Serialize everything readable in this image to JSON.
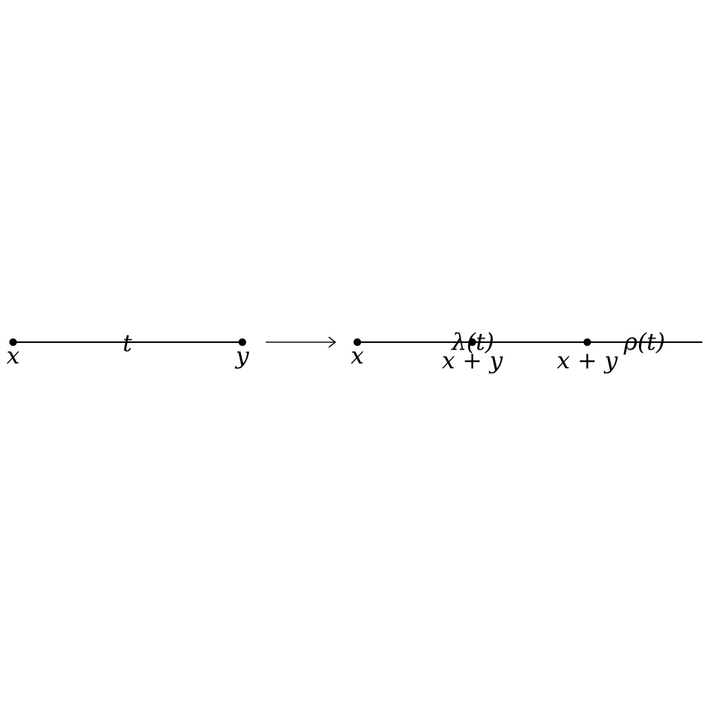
{
  "left_graph": {
    "vertices": [
      "x",
      "y"
    ],
    "edge_label": "t"
  },
  "right_graph": {
    "vertices": [
      "x",
      "x + y",
      "x + y"
    ],
    "edge_labels": [
      "λ(t)",
      "ρ(t)"
    ]
  },
  "arrow": {
    "symbol": "→"
  }
}
